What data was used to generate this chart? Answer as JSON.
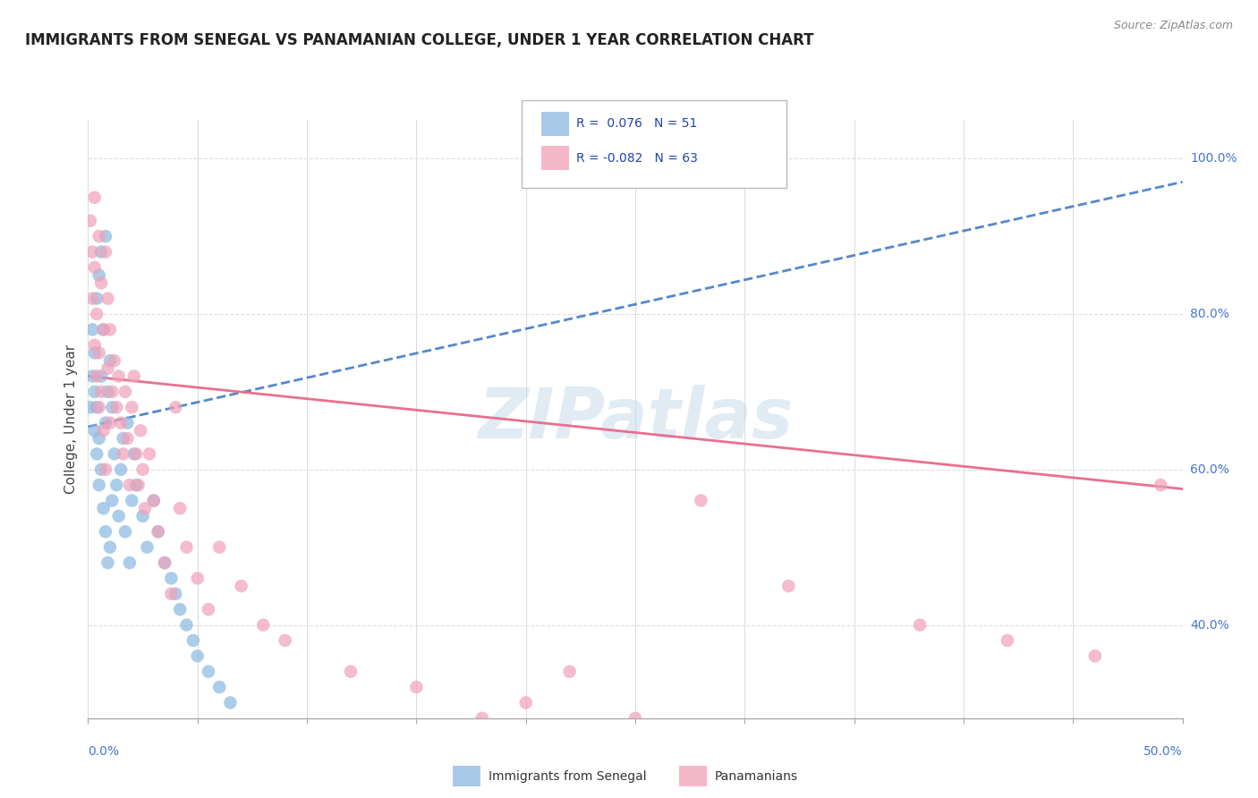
{
  "title": "IMMIGRANTS FROM SENEGAL VS PANAMANIAN COLLEGE, UNDER 1 YEAR CORRELATION CHART",
  "source": "Source: ZipAtlas.com",
  "ylabel": "College, Under 1 year",
  "xmin": 0.0,
  "xmax": 0.5,
  "ymin": 0.28,
  "ymax": 1.05,
  "legend_label1": "Immigrants from Senegal",
  "legend_label2": "Panamanians",
  "scatter_blue_x": [
    0.001,
    0.002,
    0.002,
    0.003,
    0.003,
    0.003,
    0.004,
    0.004,
    0.004,
    0.005,
    0.005,
    0.005,
    0.006,
    0.006,
    0.006,
    0.007,
    0.007,
    0.008,
    0.008,
    0.008,
    0.009,
    0.009,
    0.01,
    0.01,
    0.011,
    0.011,
    0.012,
    0.013,
    0.014,
    0.015,
    0.016,
    0.017,
    0.018,
    0.019,
    0.02,
    0.021,
    0.022,
    0.025,
    0.027,
    0.03,
    0.032,
    0.035,
    0.038,
    0.04,
    0.042,
    0.045,
    0.048,
    0.05,
    0.055,
    0.06,
    0.065
  ],
  "scatter_blue_y": [
    0.68,
    0.72,
    0.78,
    0.65,
    0.7,
    0.75,
    0.62,
    0.68,
    0.82,
    0.58,
    0.64,
    0.85,
    0.6,
    0.72,
    0.88,
    0.55,
    0.78,
    0.52,
    0.66,
    0.9,
    0.48,
    0.7,
    0.5,
    0.74,
    0.56,
    0.68,
    0.62,
    0.58,
    0.54,
    0.6,
    0.64,
    0.52,
    0.66,
    0.48,
    0.56,
    0.62,
    0.58,
    0.54,
    0.5,
    0.56,
    0.52,
    0.48,
    0.46,
    0.44,
    0.42,
    0.4,
    0.38,
    0.36,
    0.34,
    0.32,
    0.3
  ],
  "scatter_pink_x": [
    0.001,
    0.002,
    0.002,
    0.003,
    0.003,
    0.003,
    0.004,
    0.004,
    0.005,
    0.005,
    0.005,
    0.006,
    0.006,
    0.007,
    0.007,
    0.008,
    0.008,
    0.009,
    0.009,
    0.01,
    0.01,
    0.011,
    0.012,
    0.013,
    0.014,
    0.015,
    0.016,
    0.017,
    0.018,
    0.019,
    0.02,
    0.021,
    0.022,
    0.023,
    0.024,
    0.025,
    0.026,
    0.028,
    0.03,
    0.032,
    0.035,
    0.038,
    0.04,
    0.042,
    0.045,
    0.05,
    0.055,
    0.06,
    0.07,
    0.08,
    0.09,
    0.12,
    0.15,
    0.18,
    0.2,
    0.22,
    0.25,
    0.28,
    0.32,
    0.38,
    0.42,
    0.46,
    0.49
  ],
  "scatter_pink_y": [
    0.92,
    0.88,
    0.82,
    0.86,
    0.76,
    0.95,
    0.8,
    0.72,
    0.9,
    0.68,
    0.75,
    0.84,
    0.7,
    0.78,
    0.65,
    0.88,
    0.6,
    0.82,
    0.73,
    0.66,
    0.78,
    0.7,
    0.74,
    0.68,
    0.72,
    0.66,
    0.62,
    0.7,
    0.64,
    0.58,
    0.68,
    0.72,
    0.62,
    0.58,
    0.65,
    0.6,
    0.55,
    0.62,
    0.56,
    0.52,
    0.48,
    0.44,
    0.68,
    0.55,
    0.5,
    0.46,
    0.42,
    0.5,
    0.45,
    0.4,
    0.38,
    0.34,
    0.32,
    0.28,
    0.3,
    0.34,
    0.28,
    0.56,
    0.45,
    0.4,
    0.38,
    0.36,
    0.58
  ],
  "blue_line_x": [
    0.0,
    0.5
  ],
  "blue_line_y": [
    0.655,
    0.97
  ],
  "pink_line_x": [
    0.0,
    0.5
  ],
  "pink_line_y": [
    0.72,
    0.575
  ],
  "scatter_color_blue": "#89b8e0",
  "scatter_color_pink": "#f0a0b8",
  "line_color_blue": "#5588cc",
  "line_color_pink": "#e87090",
  "legend_box_blue": "#a8c8e8",
  "legend_box_pink": "#f4b8c8",
  "right_ytick_labels": [
    "100.0%",
    "80.0%",
    "60.0%",
    "40.0%"
  ],
  "right_ytick_vals": [
    1.0,
    0.8,
    0.6,
    0.4
  ],
  "watermark": "ZIPatlas",
  "background_color": "#ffffff",
  "grid_color": "#dddddd",
  "title_color": "#222222",
  "source_color": "#888888",
  "axis_label_color": "#444444",
  "tick_label_color": "#4477cc"
}
